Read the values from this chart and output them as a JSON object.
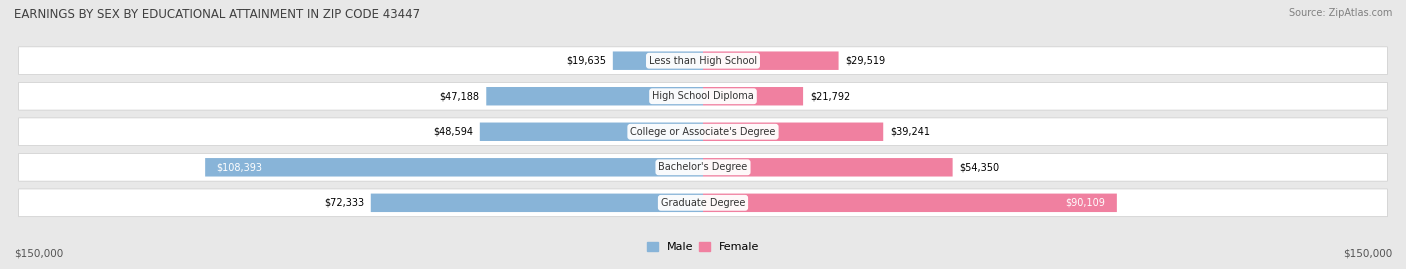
{
  "title": "EARNINGS BY SEX BY EDUCATIONAL ATTAINMENT IN ZIP CODE 43447",
  "source": "Source: ZipAtlas.com",
  "categories": [
    "Less than High School",
    "High School Diploma",
    "College or Associate's Degree",
    "Bachelor's Degree",
    "Graduate Degree"
  ],
  "male_values": [
    19635,
    47188,
    48594,
    108393,
    72333
  ],
  "female_values": [
    29519,
    21792,
    39241,
    54350,
    90109
  ],
  "male_labels": [
    "$19,635",
    "$47,188",
    "$48,594",
    "$108,393",
    "$72,333"
  ],
  "female_labels": [
    "$29,519",
    "$21,792",
    "$39,241",
    "$54,350",
    "$90,109"
  ],
  "male_color": "#88b4d8",
  "female_color": "#f080a0",
  "background_color": "#e8e8e8",
  "row_bg_color": "#f2f2f2",
  "max_value": 150000,
  "x_label_left": "$150,000",
  "x_label_right": "$150,000",
  "title_fontsize": 8.5,
  "source_fontsize": 7,
  "bar_label_fontsize": 7,
  "category_fontsize": 7,
  "axis_label_fontsize": 7.5
}
